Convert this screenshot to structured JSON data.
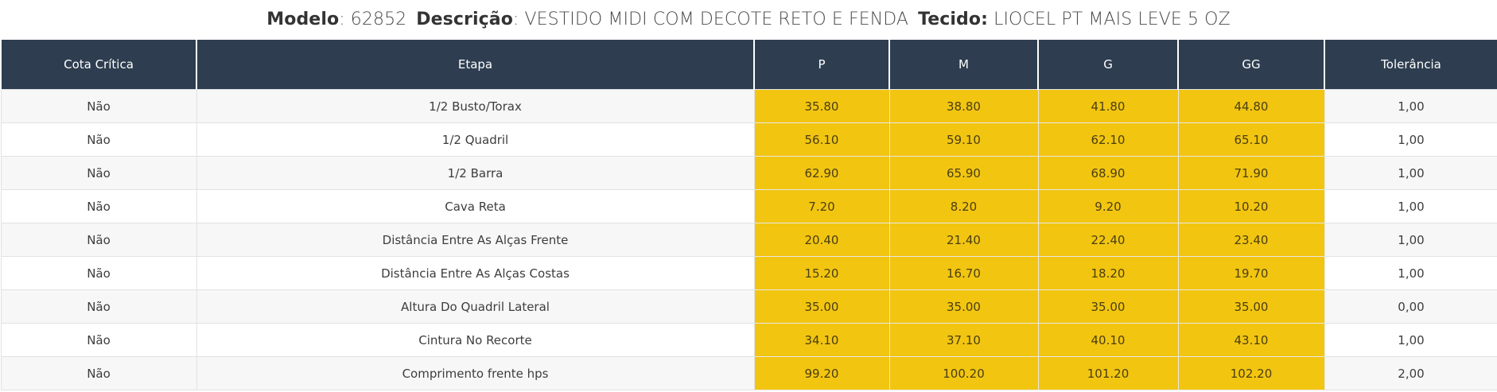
{
  "header": {
    "modelo_label": "Modelo",
    "modelo_value": "62852",
    "descricao_label": "Descrição",
    "descricao_value": "VESTIDO MIDI COM DECOTE RETO E FENDA",
    "tecido_label": "Tecido:",
    "tecido_value": "LIOCEL PT MAIS LEVE 5 OZ"
  },
  "columns": [
    "Cota Crítica",
    "Etapa",
    "P",
    "M",
    "G",
    "GG",
    "Tolerância"
  ],
  "rows": [
    {
      "cota": "Não",
      "etapa": "1/2 Busto/Torax",
      "p": "35.80",
      "m": "38.80",
      "g": "41.80",
      "gg": "44.80",
      "tol": "1,00"
    },
    {
      "cota": "Não",
      "etapa": "1/2 Quadril",
      "p": "56.10",
      "m": "59.10",
      "g": "62.10",
      "gg": "65.10",
      "tol": "1,00"
    },
    {
      "cota": "Não",
      "etapa": "1/2 Barra",
      "p": "62.90",
      "m": "65.90",
      "g": "68.90",
      "gg": "71.90",
      "tol": "1,00"
    },
    {
      "cota": "Não",
      "etapa": "Cava Reta",
      "p": "7.20",
      "m": "8.20",
      "g": "9.20",
      "gg": "10.20",
      "tol": "1,00"
    },
    {
      "cota": "Não",
      "etapa": "Distância Entre As Alças Frente",
      "p": "20.40",
      "m": "21.40",
      "g": "22.40",
      "gg": "23.40",
      "tol": "1,00"
    },
    {
      "cota": "Não",
      "etapa": "Distância Entre As Alças Costas",
      "p": "15.20",
      "m": "16.70",
      "g": "18.20",
      "gg": "19.70",
      "tol": "1,00"
    },
    {
      "cota": "Não",
      "etapa": "Altura Do Quadril Lateral",
      "p": "35.00",
      "m": "35.00",
      "g": "35.00",
      "gg": "35.00",
      "tol": "0,00"
    },
    {
      "cota": "Não",
      "etapa": "Cintura No Recorte",
      "p": "34.10",
      "m": "37.10",
      "g": "40.10",
      "gg": "43.10",
      "tol": "1,00"
    },
    {
      "cota": "Não",
      "etapa": "Comprimento frente hps",
      "p": "99.20",
      "m": "100.20",
      "g": "101.20",
      "gg": "102.20",
      "tol": "2,00"
    }
  ],
  "colors": {
    "header_bg": "#2e3e50",
    "size_bg": "#f2c511"
  }
}
